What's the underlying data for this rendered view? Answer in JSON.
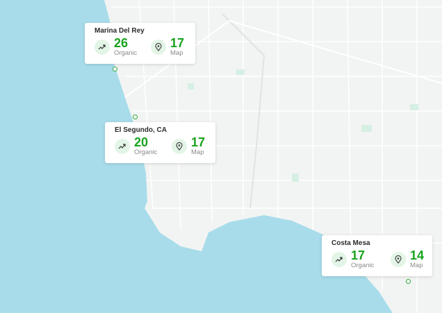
{
  "map": {
    "water_color": "#a8dcea",
    "land_color": "#f2f4f3",
    "road_color": "#ffffff",
    "park_color": "#d6efe3"
  },
  "locations": [
    {
      "name": "Marina Del Rey",
      "organic": "26",
      "organic_label": "Organic",
      "map": "17",
      "map_label": "Map",
      "accent": "#19a31e"
    },
    {
      "name": "El Segundo, CA",
      "organic": "20",
      "organic_label": "Organic",
      "map": "17",
      "map_label": "Map",
      "accent": "#19a31e"
    },
    {
      "name": "Costa Mesa",
      "organic": "17",
      "organic_label": "Organic",
      "map": "14",
      "map_label": "Map",
      "accent": "#19a31e"
    }
  ],
  "icons": {
    "organic": "trending-up-icon",
    "map": "map-pin-icon"
  }
}
